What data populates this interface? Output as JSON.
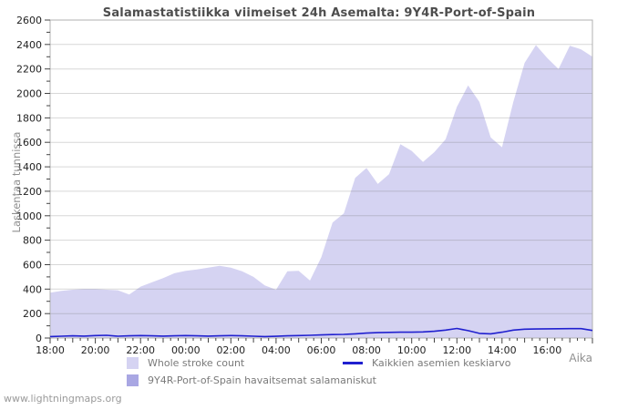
{
  "page": {
    "watermark": "www.lightningmaps.org"
  },
  "chart_data": {
    "type": "area",
    "title": "Salamastatistiikka viimeiset 24h Asemalta: 9Y4R-Port-of-Spain",
    "ylabel": "Laskentaa tunnissa",
    "xlabel": "Aika",
    "ylim": [
      0,
      2600
    ],
    "y_tick_label_step": 200,
    "y_minor_tick_step": 100,
    "x_minor_tick_minutes": 20,
    "grid": true,
    "legend_position": "bottom",
    "colors": {
      "plot_bg": "#ffffff",
      "border": "#b0b0b0",
      "tick": "#444444",
      "grid": "rgba(110,110,110,0.28)",
      "tick_label": "#222222"
    },
    "x_tick_labels": [
      "18:00",
      "20:00",
      "22:00",
      "00:00",
      "02:00",
      "04:00",
      "06:00",
      "08:00",
      "10:00",
      "12:00",
      "14:00",
      "16:00"
    ],
    "times": [
      "18:00",
      "18:30",
      "19:00",
      "19:30",
      "20:00",
      "20:30",
      "21:00",
      "21:30",
      "22:00",
      "22:30",
      "23:00",
      "23:30",
      "00:00",
      "00:30",
      "01:00",
      "01:30",
      "02:00",
      "02:30",
      "03:00",
      "03:30",
      "04:00",
      "04:30",
      "05:00",
      "05:30",
      "06:00",
      "06:30",
      "07:00",
      "07:30",
      "08:00",
      "08:30",
      "09:00",
      "09:30",
      "10:00",
      "10:30",
      "11:00",
      "11:30",
      "12:00",
      "12:30",
      "13:00",
      "13:30",
      "14:00",
      "14:30",
      "15:00",
      "15:30",
      "16:00",
      "16:30",
      "17:00",
      "17:30",
      "18:00"
    ],
    "series": [
      {
        "name": "Whole stroke count",
        "type": "area",
        "color": "#d5d3f2",
        "values": [
          370,
          385,
          395,
          400,
          400,
          395,
          390,
          355,
          420,
          455,
          490,
          530,
          550,
          560,
          575,
          590,
          575,
          545,
          500,
          430,
          395,
          545,
          550,
          470,
          660,
          945,
          1020,
          1310,
          1390,
          1260,
          1340,
          1585,
          1530,
          1440,
          1520,
          1625,
          1890,
          2065,
          1930,
          1640,
          1560,
          1930,
          2250,
          2395,
          2290,
          2200,
          2390,
          2360,
          2300
        ]
      },
      {
        "name": "9Y4R-Port-of-Spain havaitsemat salamaniskut",
        "type": "area",
        "color": "#a9a7e3",
        "values": [
          0,
          0,
          0,
          0,
          0,
          0,
          0,
          0,
          0,
          0,
          0,
          0,
          0,
          0,
          0,
          0,
          0,
          0,
          0,
          0,
          0,
          0,
          0,
          0,
          0,
          0,
          0,
          0,
          0,
          0,
          0,
          0,
          0,
          0,
          0,
          0,
          0,
          0,
          0,
          0,
          0,
          0,
          0,
          0,
          0,
          0,
          0,
          0,
          0
        ]
      },
      {
        "name": "Kaikkien asemien keskiarvo",
        "type": "line",
        "color": "#2020cf",
        "values": [
          12,
          15,
          18,
          16,
          20,
          22,
          15,
          18,
          20,
          18,
          16,
          18,
          20,
          18,
          16,
          18,
          20,
          18,
          15,
          12,
          14,
          18,
          20,
          22,
          25,
          28,
          30,
          34,
          40,
          44,
          46,
          48,
          48,
          50,
          55,
          65,
          78,
          60,
          38,
          34,
          48,
          65,
          72,
          74,
          75,
          76,
          77,
          77,
          62
        ]
      }
    ]
  }
}
